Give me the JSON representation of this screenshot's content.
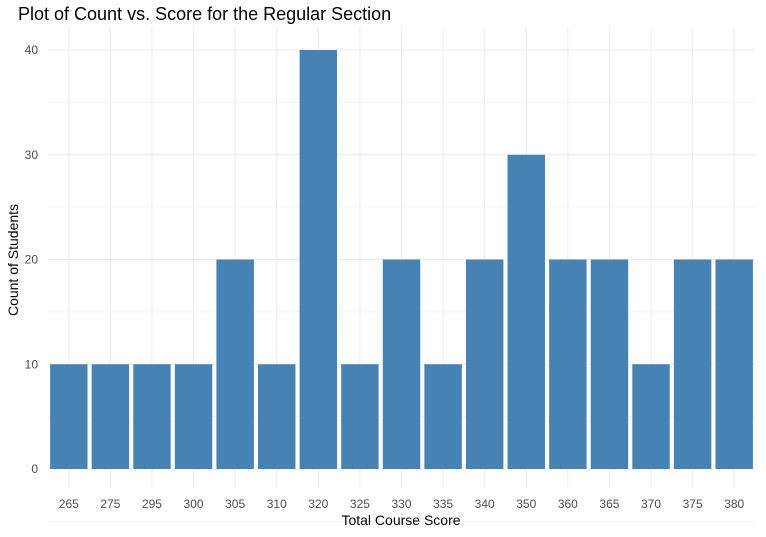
{
  "chart_data": {
    "type": "bar",
    "title": "Plot of Count vs. Score for the Regular Section",
    "xlabel": "Total Course Score",
    "ylabel": "Count of Students",
    "categories": [
      "265",
      "275",
      "295",
      "300",
      "305",
      "310",
      "320",
      "325",
      "330",
      "335",
      "340",
      "350",
      "360",
      "365",
      "370",
      "375",
      "380"
    ],
    "values": [
      10,
      10,
      10,
      10,
      20,
      10,
      40,
      10,
      20,
      10,
      20,
      30,
      20,
      20,
      10,
      20,
      20
    ],
    "ylim": [
      0,
      42
    ],
    "yticks": [
      0,
      10,
      20,
      30,
      40
    ],
    "grid": true,
    "legend": "none",
    "bar_color": "#4682b4"
  }
}
